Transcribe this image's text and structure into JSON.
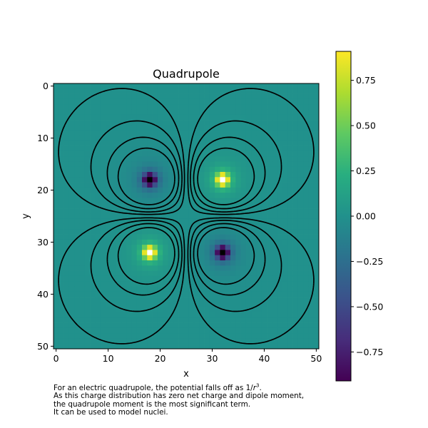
{
  "chart_data": {
    "type": "heatmap",
    "title": "Quadrupole",
    "xlabel": "x",
    "ylabel": "y",
    "grid_size": 51,
    "xlim": [
      -0.5,
      50.5
    ],
    "ylim": [
      50.5,
      -0.5
    ],
    "x_ticks": [
      0,
      10,
      20,
      30,
      40,
      50
    ],
    "y_ticks": [
      0,
      10,
      20,
      30,
      40,
      50
    ],
    "colormap": "viridis",
    "colorbar": {
      "range": [
        -0.91,
        0.91
      ],
      "ticks": [
        0.75,
        0.5,
        0.25,
        0.0,
        -0.25,
        -0.5,
        -0.75
      ],
      "tick_labels": [
        "0.75",
        "0.50",
        "0.25",
        "0.00",
        "−0.25",
        "−0.50",
        "−0.75"
      ]
    },
    "charges": [
      {
        "x": 18,
        "y": 18,
        "sign": -1
      },
      {
        "x": 32,
        "y": 18,
        "sign": 1
      },
      {
        "x": 18,
        "y": 32,
        "sign": 1
      },
      {
        "x": 32,
        "y": 32,
        "sign": -1
      }
    ],
    "contours": {
      "color": "#000000",
      "positive_style": "solid",
      "negative_style": "dashed"
    }
  },
  "caption": {
    "line1_prefix": "For an electric quadrupole, the potential falls off as 1/",
    "line1_base": "r",
    "line1_exp": "3",
    "line1_suffix": ".",
    "line2": "As this charge distribution has zero net charge and dipole moment,",
    "line3": "the quadrupole moment is the most significant term.",
    "line4": "It can be used to model nuclei."
  }
}
